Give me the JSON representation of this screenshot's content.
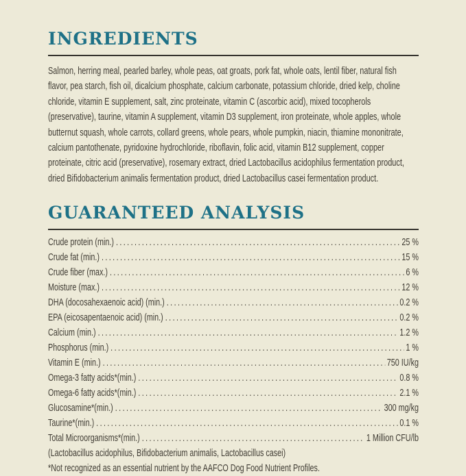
{
  "colors": {
    "background": "#EDEAD8",
    "accent_teal": "#1E7187",
    "text": "#403C34",
    "divider": "#35332E"
  },
  "ingredients": {
    "title": "INGREDIENTS",
    "text": "Salmon, herring meal, pearled barley, whole peas, oat groats, pork fat, whole oats, lentil fiber, natural fish flavor, pea starch, fish oil, dicalcium phosphate, calcium carbonate, potassium chloride, dried kelp, choline chloride, vitamin E supplement, salt, zinc proteinate, vitamin C (ascorbic acid), mixed tocopherols (preservative), taurine, vitamin A supplement, vitamin D3 supplement, iron proteinate, whole apples, whole butternut squash, whole carrots, collard greens, whole pears, whole pumpkin, niacin, thiamine mononitrate, calcium pantothenate, pyridoxine hydrochloride, riboflavin, folic acid, vitamin B12 supplement, copper proteinate, citric acid (preservative), rosemary extract, dried Lactobacillus acidophilus fermentation product, dried Bifidobacterium animalis fermentation product, dried Lactobacillus casei fermentation product."
  },
  "guaranteed_analysis": {
    "title": "GUARANTEED ANALYSIS",
    "rows": [
      {
        "label": "Crude protein (min.)",
        "value": "25 %"
      },
      {
        "label": "Crude fat (min.)",
        "value": "15 %"
      },
      {
        "label": "Crude fiber (max.)",
        "value": "6 %"
      },
      {
        "label": "Moisture (max.)",
        "value": "12 %"
      },
      {
        "label": "DHA (docosahexaenoic acid) (min.)",
        "value": "0.2 %"
      },
      {
        "label": "EPA (eicosapentaenoic acid) (min.)",
        "value": "0.2 %"
      },
      {
        "label": "Calcium (min.)",
        "value": "1.2 %"
      },
      {
        "label": "Phosphorus (min.)",
        "value": "1 %"
      },
      {
        "label": "Vitamin E (min.)",
        "value": "750 IU/kg"
      },
      {
        "label": "Omega-3 fatty acids*(min.)",
        "value": "0.8 %"
      },
      {
        "label": "Omega-6 fatty acids*(min.)",
        "value": "2.1 %"
      },
      {
        "label": "Glucosamine*(min.)",
        "value": "300 mg/kg"
      },
      {
        "label": "Taurine*(min.)",
        "value": "0.1 %"
      },
      {
        "label": "Total Microorganisms*(min.)",
        "value": "1 Million CFU/lb"
      }
    ],
    "microorganisms_note": "(Lactobacillus acidophilus, Bifidobacterium animalis, Lactobacillus casei)",
    "footnote": "*Not recognized as an essential nutrient by the AAFCO Dog Food Nutrient Profiles."
  }
}
